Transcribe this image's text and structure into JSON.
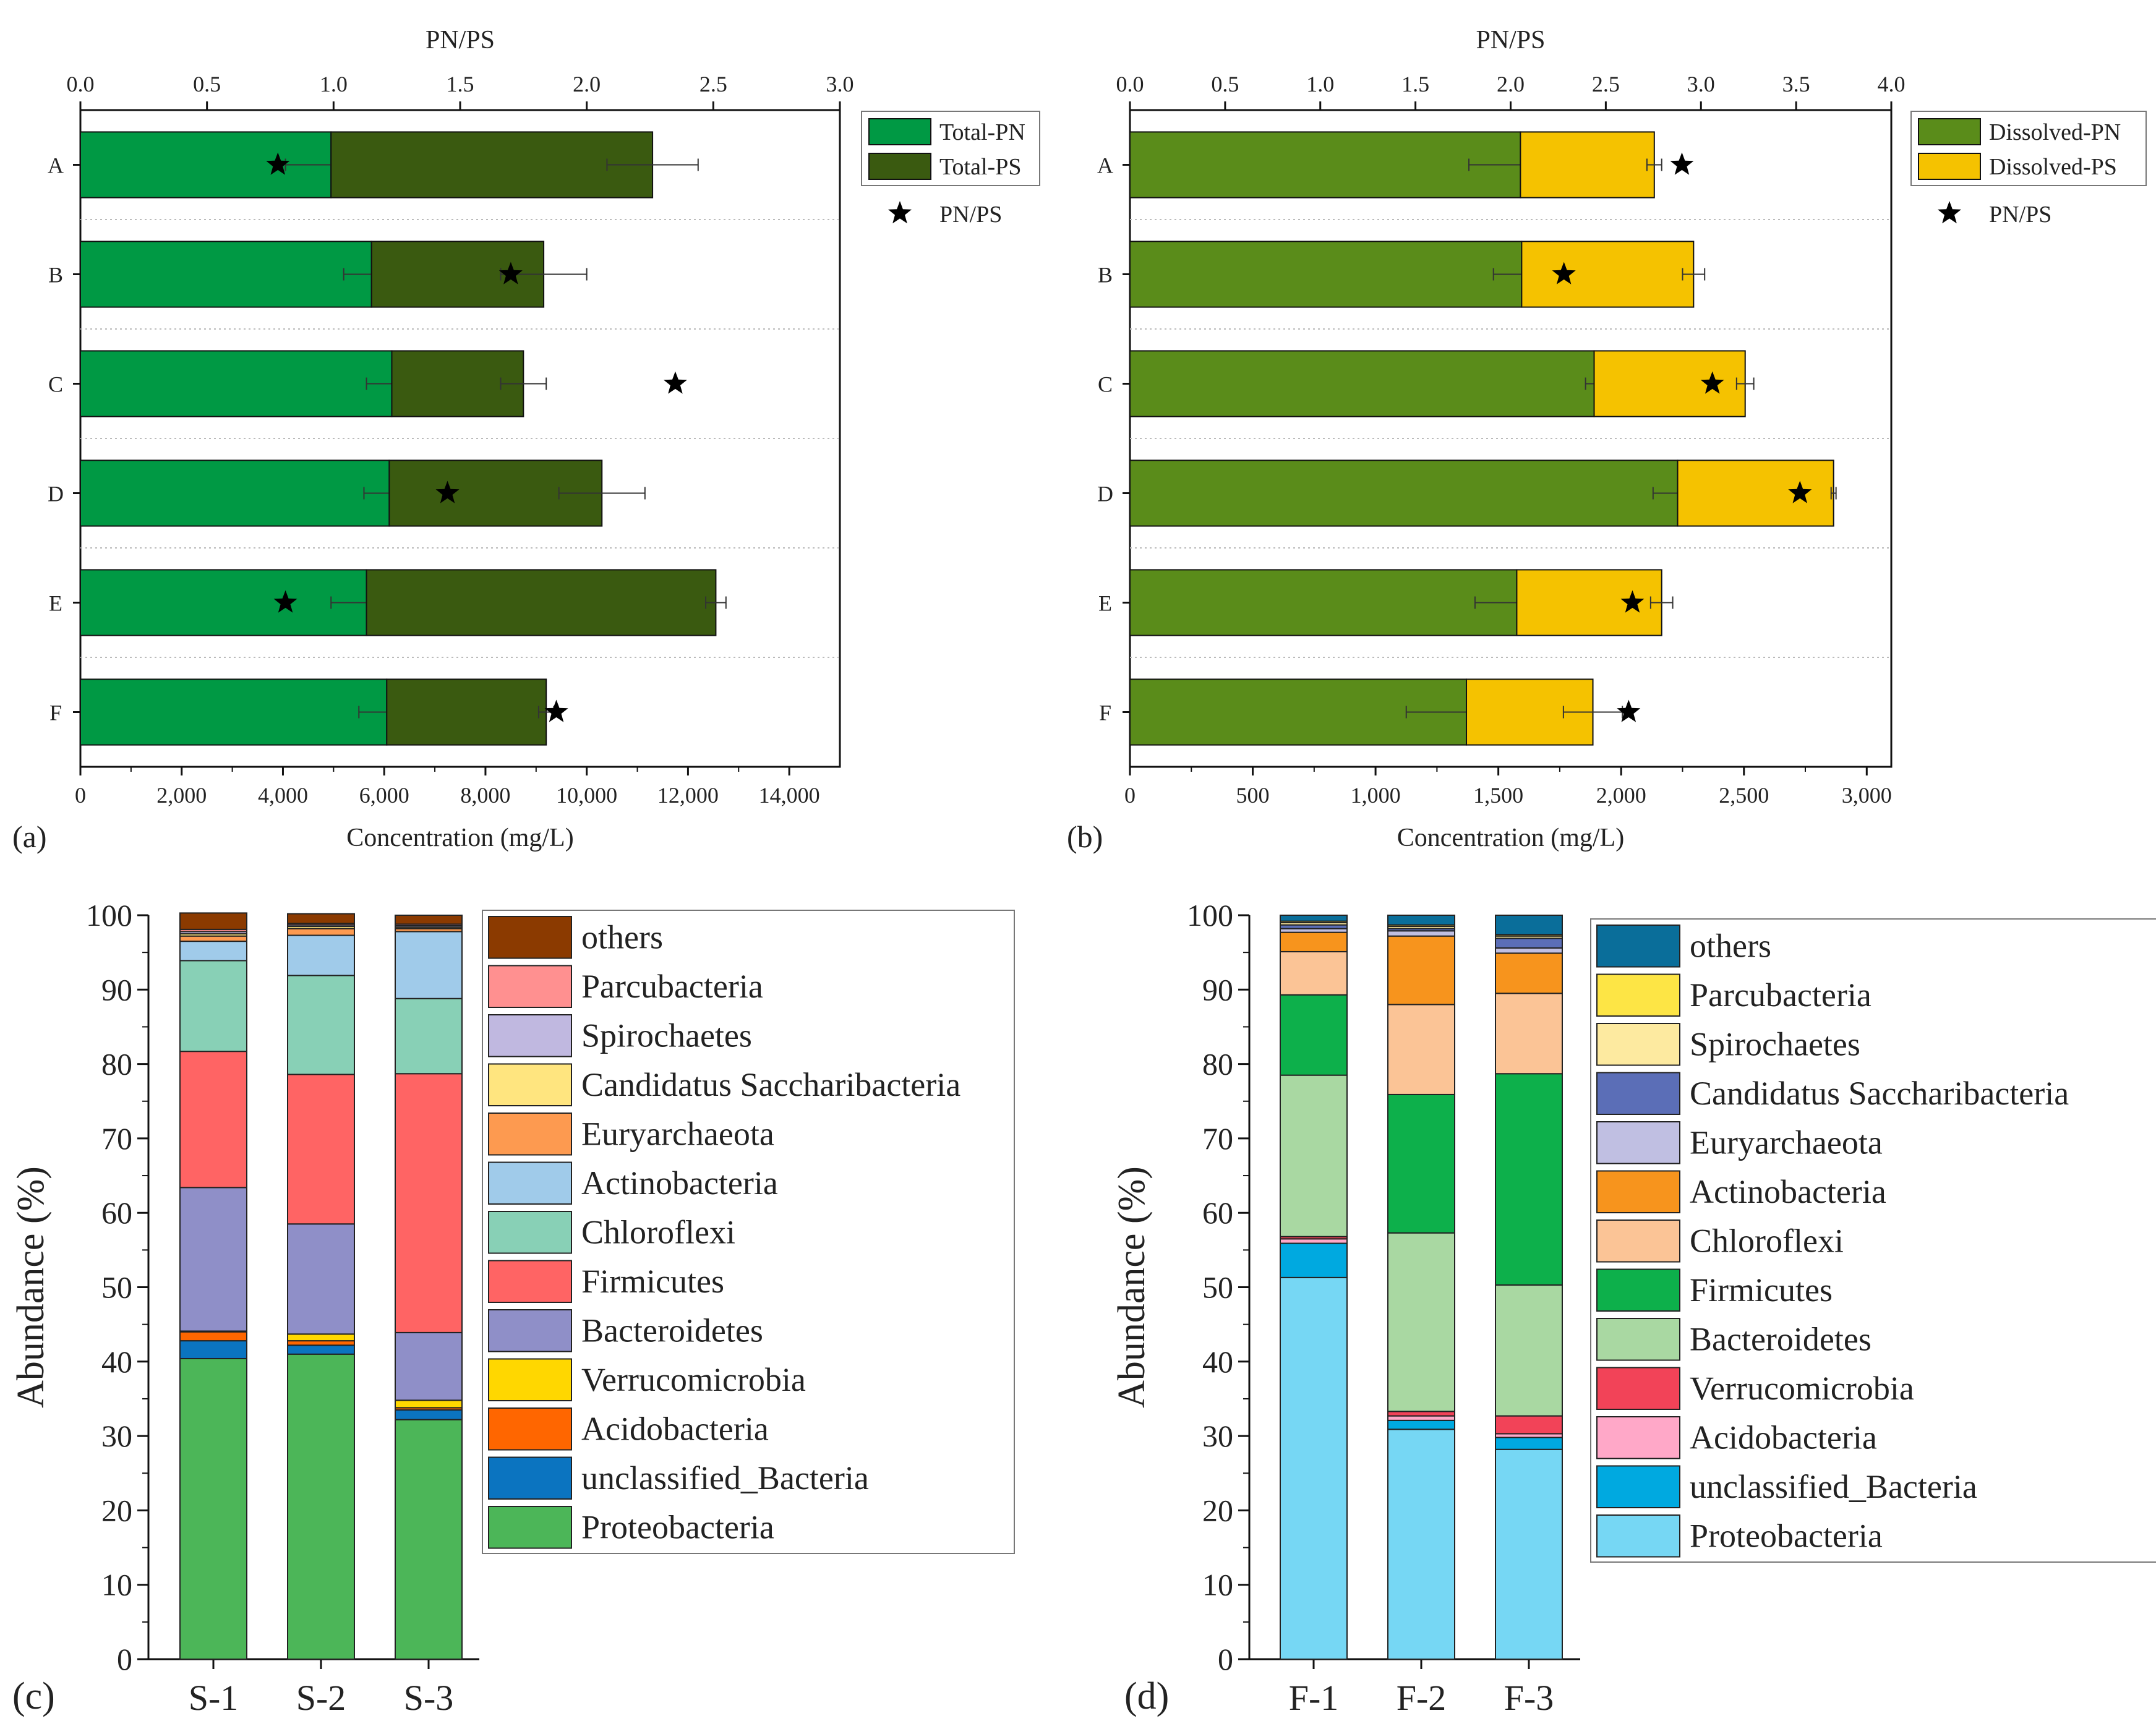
{
  "chart_data": [
    {
      "panel": "a",
      "panel_label": "(a)",
      "type": "bar",
      "orientation": "horizontal",
      "stacked": true,
      "categories": [
        "A",
        "B",
        "C",
        "D",
        "E",
        "F"
      ],
      "series": [
        {
          "name": "Total-PN",
          "color": "#009944",
          "values": [
            4950,
            5750,
            6150,
            6100,
            5650,
            6050
          ],
          "errors": [
            900,
            550,
            500,
            500,
            700,
            550
          ]
        },
        {
          "name": "Total-PS",
          "color": "#3a5a10",
          "values": [
            6350,
            3400,
            2600,
            4200,
            6900,
            3150
          ],
          "errors": [
            900,
            850,
            450,
            850,
            200,
            150
          ]
        }
      ],
      "ratio_series": {
        "name": "PN/PS",
        "marker": "star",
        "values": [
          0.78,
          1.7,
          2.35,
          1.45,
          0.81,
          1.88
        ]
      },
      "xlabel": "Concentration (mg/L)",
      "xlim": [
        0,
        15000
      ],
      "xticks": [
        0,
        2000,
        4000,
        6000,
        8000,
        10000,
        12000,
        14000
      ],
      "xtick_labels": [
        "0",
        "2,000",
        "4,000",
        "6,000",
        "8,000",
        "10,000",
        "12,000",
        "14,000"
      ],
      "top_xlabel": "PN/PS",
      "top_xlim": [
        0,
        3.0
      ],
      "top_xticks": [
        "0.0",
        "0.5",
        "1.0",
        "1.5",
        "2.0",
        "2.5",
        "3.0"
      ],
      "legend_position": "right"
    },
    {
      "panel": "b",
      "panel_label": "(b)",
      "type": "bar",
      "orientation": "horizontal",
      "stacked": true,
      "categories": [
        "A",
        "B",
        "C",
        "D",
        "E",
        "F"
      ],
      "series": [
        {
          "name": "Dissolved-PN",
          "color": "#5a8c1a",
          "values": [
            1590,
            1595,
            1890,
            2230,
            1575,
            1370
          ],
          "errors": [
            210,
            115,
            35,
            100,
            170,
            245
          ]
        },
        {
          "name": "Dissolved-PS",
          "color": "#f5c200",
          "values": [
            545,
            700,
            615,
            635,
            590,
            515
          ],
          "errors": [
            30,
            45,
            35,
            10,
            45,
            120
          ]
        }
      ],
      "ratio_series": {
        "name": "PN/PS",
        "marker": "star",
        "values": [
          2.9,
          2.28,
          3.06,
          3.52,
          2.64,
          2.62
        ]
      },
      "xlabel": "Concentration (mg/L)",
      "xlim": [
        0,
        3100
      ],
      "xticks": [
        0,
        500,
        1000,
        1500,
        2000,
        2500,
        3000
      ],
      "xtick_labels": [
        "0",
        "500",
        "1,000",
        "1,500",
        "2,000",
        "2,500",
        "3,000"
      ],
      "top_xlabel": "PN/PS",
      "top_xlim": [
        0,
        4.0
      ],
      "top_xticks": [
        "0.0",
        "0.5",
        "1.0",
        "1.5",
        "2.0",
        "2.5",
        "3.0",
        "3.5",
        "4.0"
      ],
      "legend_position": "right"
    },
    {
      "panel": "c",
      "panel_label": "(c)",
      "type": "bar",
      "orientation": "vertical",
      "stacked": true,
      "categories": [
        "S-1",
        "S-2",
        "S-3"
      ],
      "ylabel": "Abundance (%)",
      "ylim": [
        0,
        100
      ],
      "yticks": [
        "0",
        "10",
        "20",
        "30",
        "40",
        "50",
        "60",
        "70",
        "80",
        "90",
        "100"
      ],
      "series": [
        {
          "name": "Proteobacteria",
          "color": "#4cb658",
          "values": [
            40.4,
            41.0,
            32.2
          ]
        },
        {
          "name": "unclassified_Bacteria",
          "color": "#0b74c0",
          "values": [
            2.4,
            1.2,
            1.3
          ]
        },
        {
          "name": "Acidobacteria",
          "color": "#ff6600",
          "values": [
            1.2,
            0.6,
            0.3
          ]
        },
        {
          "name": "Verrucomicrobia",
          "color": "#ffd700",
          "values": [
            0.1,
            0.9,
            1.0
          ]
        },
        {
          "name": "Bacteroidetes",
          "color": "#8f8fc8",
          "values": [
            19.3,
            14.8,
            9.1
          ]
        },
        {
          "name": "Firmicutes",
          "color": "#ff6464",
          "values": [
            18.3,
            20.1,
            34.8
          ]
        },
        {
          "name": "Chloroflexi",
          "color": "#88d0b6",
          "values": [
            12.2,
            13.3,
            10.1
          ]
        },
        {
          "name": "Actinobacteria",
          "color": "#a0cbea",
          "values": [
            2.6,
            5.4,
            9.0
          ]
        },
        {
          "name": "Euryarchaeota",
          "color": "#fd9a50",
          "values": [
            0.7,
            0.9,
            0.4
          ]
        },
        {
          "name": "Candidatus Saccharibacteria",
          "color": "#ffe57f",
          "values": [
            0.3,
            0.3,
            0.2
          ]
        },
        {
          "name": "Spirochaetes",
          "color": "#c0b8e0",
          "values": [
            0.3,
            0.2,
            0.2
          ]
        },
        {
          "name": "Parcubacteria",
          "color": "#ff9090",
          "values": [
            0.3,
            0.2,
            0.2
          ]
        },
        {
          "name": "others",
          "color": "#8b3a00",
          "values": [
            2.2,
            1.3,
            1.2
          ]
        }
      ],
      "legend_order": [
        "others",
        "Parcubacteria",
        "Spirochaetes",
        "Candidatus Saccharibacteria",
        "Euryarchaeota",
        "Actinobacteria",
        "Chloroflexi",
        "Firmicutes",
        "Bacteroidetes",
        "Verrucomicrobia",
        "Acidobacteria",
        "unclassified_Bacteria",
        "Proteobacteria"
      ],
      "legend_position": "right"
    },
    {
      "panel": "d",
      "panel_label": "(d)",
      "type": "bar",
      "orientation": "vertical",
      "stacked": true,
      "categories": [
        "F-1",
        "F-2",
        "F-3"
      ],
      "ylabel": "Abundance (%)",
      "ylim": [
        0,
        100
      ],
      "yticks": [
        "0",
        "10",
        "20",
        "30",
        "40",
        "50",
        "60",
        "70",
        "80",
        "90",
        "100"
      ],
      "series": [
        {
          "name": "Proteobacteria",
          "color": "#76d7f4",
          "values": [
            51.3,
            30.9,
            28.2
          ]
        },
        {
          "name": "unclassified_Bacteria",
          "color": "#00a9e0",
          "values": [
            4.6,
            1.2,
            1.6
          ]
        },
        {
          "name": "Acidobacteria",
          "color": "#ffa8c8",
          "values": [
            0.6,
            0.6,
            0.5
          ]
        },
        {
          "name": "Verrucomicrobia",
          "color": "#f24358",
          "values": [
            0.3,
            0.6,
            2.4
          ]
        },
        {
          "name": "Bacteroidetes",
          "color": "#a9d8a2",
          "values": [
            21.7,
            24.0,
            17.6
          ]
        },
        {
          "name": "Firmicutes",
          "color": "#0db04b",
          "values": [
            10.8,
            18.6,
            28.4
          ]
        },
        {
          "name": "Chloroflexi",
          "color": "#fbc496",
          "values": [
            5.8,
            12.1,
            10.8
          ]
        },
        {
          "name": "Actinobacteria",
          "color": "#f7941d",
          "values": [
            2.6,
            9.2,
            5.4
          ]
        },
        {
          "name": "Euryarchaeota",
          "color": "#c0bfe2",
          "values": [
            0.5,
            0.7,
            0.7
          ]
        },
        {
          "name": "Candidatus Saccharibacteria",
          "color": "#5b6eb7",
          "values": [
            0.5,
            0.3,
            1.3
          ]
        },
        {
          "name": "Spirochaetes",
          "color": "#fdeaa0",
          "values": [
            0.3,
            0.3,
            0.3
          ]
        },
        {
          "name": "Parcubacteria",
          "color": "#fde545",
          "values": [
            0.2,
            0.2,
            0.2
          ]
        },
        {
          "name": "others",
          "color": "#0a6e9a",
          "values": [
            0.8,
            1.3,
            2.6
          ]
        }
      ],
      "legend_order": [
        "others",
        "Parcubacteria",
        "Spirochaetes",
        "Candidatus Saccharibacteria",
        "Euryarchaeota",
        "Actinobacteria",
        "Chloroflexi",
        "Firmicutes",
        "Bacteroidetes",
        "Verrucomicrobia",
        "Acidobacteria",
        "unclassified_Bacteria",
        "Proteobacteria"
      ],
      "legend_position": "right"
    }
  ]
}
